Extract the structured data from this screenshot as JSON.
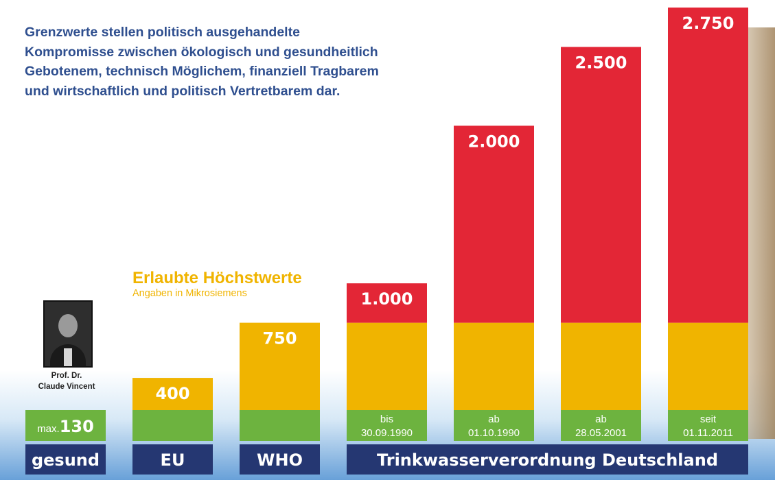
{
  "quote": "Grenzwerte stellen politisch ausgehandelte Kompromisse zwischen ökologisch und gesundheitlich Gebotenem, technisch Möglichem, finanziell Tragbarem und wirtschaftlich und politisch Vertretbarem dar.",
  "subtitle": {
    "title": "Erlaubte Höchstwerte",
    "unit": "Angaben in Mikrosiemens"
  },
  "photo_caption": {
    "line1": "Prof. Dr.",
    "line2": "Claude Vincent"
  },
  "colors": {
    "green": "#6db33f",
    "yellow": "#f0b400",
    "red": "#e32636",
    "navy": "#253772"
  },
  "chart_data": {
    "type": "bar",
    "title": "",
    "xlabel": "",
    "ylabel": "",
    "ylim": [
      0,
      2750
    ],
    "bars": [
      {
        "value": 130,
        "label": "130",
        "prefix": "max.",
        "date_lines": []
      },
      {
        "value": 400,
        "label": "400",
        "date_lines": []
      },
      {
        "value": 750,
        "label": "750",
        "date_lines": []
      },
      {
        "value": 1000,
        "label": "1.000",
        "date_lines": [
          "bis",
          "30.09.1990"
        ]
      },
      {
        "value": 2000,
        "label": "2.000",
        "date_lines": [
          "ab",
          "01.10.1990"
        ]
      },
      {
        "value": 2500,
        "label": "2.500",
        "date_lines": [
          "ab",
          "28.05.2001"
        ]
      },
      {
        "value": 2750,
        "label": "2.750",
        "date_lines": [
          "seit",
          "01.11.2011"
        ]
      }
    ],
    "category_labels": [
      {
        "text": "gesund",
        "bars": [
          0
        ]
      },
      {
        "text": "EU",
        "bars": [
          1
        ]
      },
      {
        "text": "WHO",
        "bars": [
          2
        ]
      },
      {
        "text": "Trinkwasserverordnung Deutschland",
        "bars": [
          3,
          4,
          5,
          6
        ]
      }
    ]
  }
}
